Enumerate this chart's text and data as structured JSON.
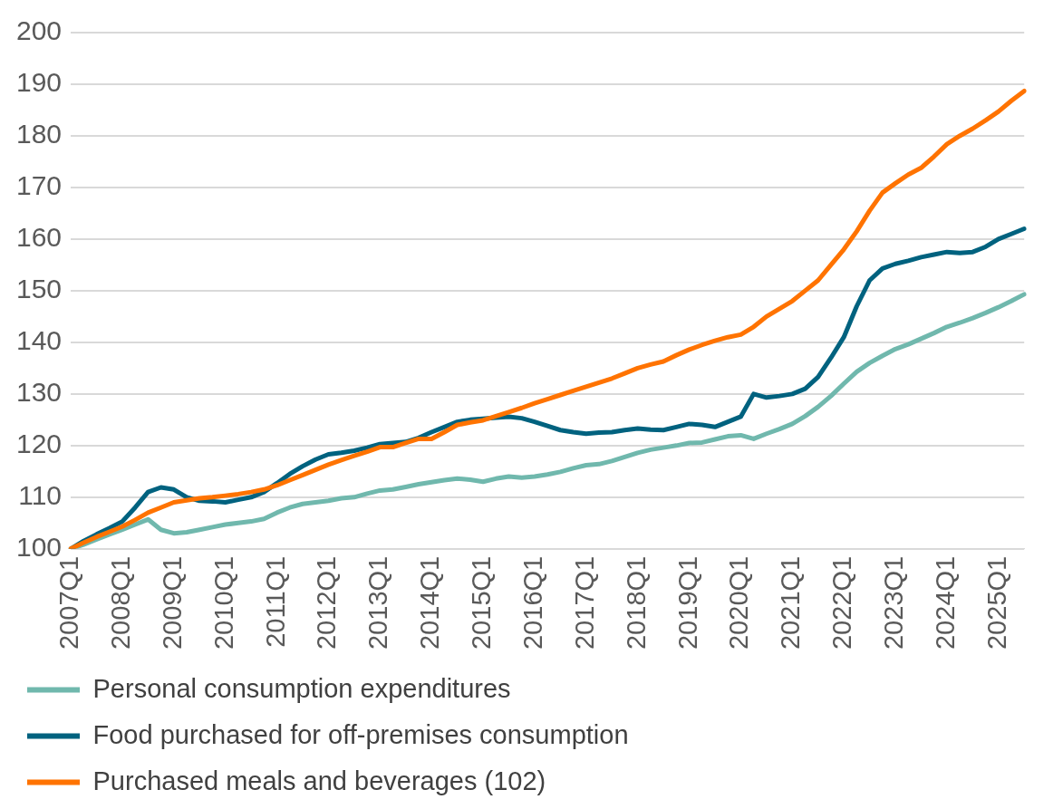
{
  "chart_data": {
    "type": "line",
    "categories": [
      "2007Q1",
      null,
      null,
      null,
      "2008Q1",
      null,
      null,
      null,
      "2009Q1",
      null,
      null,
      null,
      "2010Q1",
      null,
      null,
      null,
      "2011Q1",
      null,
      null,
      null,
      "2012Q1",
      null,
      null,
      null,
      "2013Q1",
      null,
      null,
      null,
      "2014Q1",
      null,
      null,
      null,
      "2015Q1",
      null,
      null,
      null,
      "2016Q1",
      null,
      null,
      null,
      "2017Q1",
      null,
      null,
      null,
      "2018Q1",
      null,
      null,
      null,
      "2019Q1",
      null,
      null,
      null,
      "2020Q1",
      null,
      null,
      null,
      "2021Q1",
      null,
      null,
      null,
      "2022Q1",
      null,
      null,
      null,
      "2023Q1",
      null,
      null,
      null,
      "2024Q1",
      null,
      null,
      null,
      "2025Q1",
      null,
      null
    ],
    "series": [
      {
        "name": "Personal consumption expenditures",
        "color": "#70b8ad",
        "values": [
          100,
          100.8,
          101.8,
          102.8,
          103.7,
          104.7,
          105.7,
          103.7,
          103,
          103.2,
          103.7,
          104.2,
          104.7,
          105,
          105.3,
          105.8,
          107,
          108,
          108.7,
          109,
          109.3,
          109.8,
          110,
          110.7,
          111.3,
          111.5,
          112,
          112.5,
          112.9,
          113.3,
          113.6,
          113.4,
          113,
          113.6,
          114,
          113.8,
          114,
          114.4,
          114.9,
          115.6,
          116.2,
          116.4,
          117,
          117.8,
          118.6,
          119.2,
          119.6,
          120,
          120.5,
          120.6,
          121.2,
          121.8,
          122,
          121.3,
          122.3,
          123.2,
          124.2,
          125.7,
          127.5,
          129.6,
          132,
          134.3,
          136,
          137.4,
          138.7,
          139.6,
          140.7,
          141.8,
          143,
          143.8,
          144.7,
          145.7,
          146.8,
          148,
          149.3
        ]
      },
      {
        "name": "Food purchased for off-premises consumption",
        "color": "#00627f",
        "values": [
          100,
          101.5,
          102.8,
          104,
          105.3,
          108,
          111,
          111.9,
          111.5,
          110,
          109.3,
          109.2,
          109,
          109.5,
          110,
          111,
          112.7,
          114.5,
          116,
          117.3,
          118.3,
          118.6,
          119,
          119.6,
          120.3,
          120.5,
          120.7,
          121.5,
          122.6,
          123.6,
          124.6,
          125,
          125.2,
          125.4,
          125.6,
          125.3,
          124.6,
          123.8,
          123,
          122.6,
          122.3,
          122.5,
          122.6,
          123,
          123.3,
          123.1,
          123,
          123.6,
          124.2,
          124,
          123.6,
          124.6,
          125.6,
          130,
          129.3,
          129.6,
          130,
          131,
          133.3,
          137,
          141,
          147,
          152,
          154.3,
          155.2,
          155.8,
          156.5,
          157,
          157.5,
          157.3,
          157.5,
          158.5,
          160,
          161,
          162
        ]
      },
      {
        "name": "Purchased meals and beverages (102)",
        "color": "#ff7300",
        "values": [
          100,
          101.2,
          102.3,
          103.3,
          104.3,
          105.6,
          107,
          108,
          109,
          109.4,
          109.8,
          110,
          110.3,
          110.6,
          111,
          111.5,
          112.3,
          113.3,
          114.3,
          115.3,
          116.3,
          117.2,
          118,
          118.8,
          119.7,
          119.7,
          120.5,
          121.3,
          121.3,
          122.6,
          124,
          124.5,
          124.9,
          125.7,
          126.5,
          127.3,
          128.2,
          129,
          129.8,
          130.6,
          131.4,
          132.2,
          133,
          134,
          135,
          135.7,
          136.3,
          137.5,
          138.6,
          139.5,
          140.3,
          141,
          141.5,
          143,
          145,
          146.5,
          148,
          150,
          152,
          155,
          158,
          161.5,
          165.5,
          169,
          170.8,
          172.5,
          173.8,
          176,
          178.4,
          180,
          181.4,
          183,
          184.7,
          186.8,
          188.7
        ]
      }
    ],
    "ylim": [
      100,
      200
    ],
    "yticks": [
      100,
      110,
      120,
      130,
      140,
      150,
      160,
      170,
      180,
      190,
      200
    ],
    "grid": "y",
    "legend": "bottom",
    "marker": "none",
    "line_style": "solid"
  }
}
